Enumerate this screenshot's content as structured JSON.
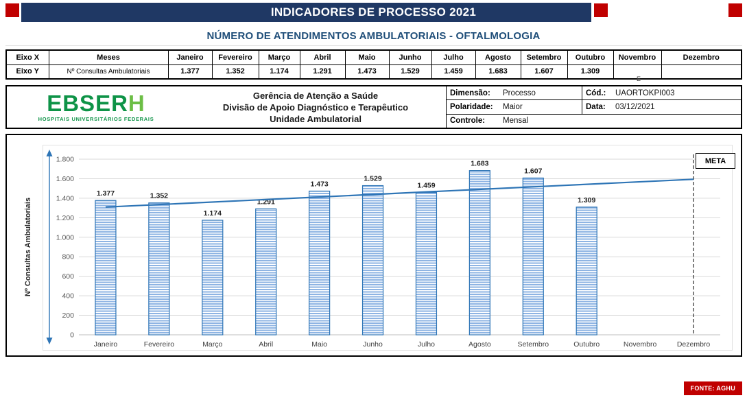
{
  "header": {
    "title": "INDICADORES DE PROCESSO 2021",
    "subtitle": "NÚMERO DE ATENDIMENTOS AMBULATORIAIS - OFTALMOLOGIA"
  },
  "axis_table": {
    "row_x_label": "Eixo X",
    "row_x_name": "Meses",
    "row_y_label": "Eixo Y",
    "row_y_name": "Nº Consultas Ambulatoriais",
    "months": [
      "Janeiro",
      "Fevereiro",
      "Março",
      "Abril",
      "Maio",
      "Junho",
      "Julho",
      "Agosto",
      "Setembro",
      "Outubro",
      "Novembro",
      "Dezembro"
    ],
    "values": [
      "1.377",
      "1.352",
      "1.174",
      "1.291",
      "1.473",
      "1.529",
      "1.459",
      "1.683",
      "1.607",
      "1.309",
      "",
      ""
    ]
  },
  "stray_text": "E",
  "info_panel": {
    "logo_main": "EBSER",
    "logo_h": "H",
    "logo_tagline": "HOSPITAIS UNIVERSITÁRIOS FEDERAIS",
    "org_lines": [
      "Gerência de Atenção a Saúde",
      "Divisão de Apoio Diagnóstico e Terapêutico",
      "Unidade Ambulatorial"
    ],
    "rows": [
      {
        "cells": [
          {
            "label": "Dimensão:",
            "value": "Processo"
          },
          {
            "label": "Cód.:",
            "value": "UAORTOKPI003"
          }
        ]
      },
      {
        "cells": [
          {
            "label": "Polaridade:",
            "value": "Maior"
          },
          {
            "label": "Data:",
            "value": "03/12/2021"
          }
        ]
      },
      {
        "cells": [
          {
            "label": "Controle:",
            "value": "Mensal"
          }
        ]
      }
    ]
  },
  "chart_data": {
    "type": "bar",
    "title": "NÚMERO DE ATENDIMENTOS AMBULATORIAIS - OFTALMOLOGIA",
    "categories": [
      "Janeiro",
      "Fevereiro",
      "Março",
      "Abril",
      "Maio",
      "Junho",
      "Julho",
      "Agosto",
      "Setembro",
      "Outubro",
      "Novembro",
      "Dezembro"
    ],
    "values": [
      1377,
      1352,
      1174,
      1291,
      1473,
      1529,
      1459,
      1683,
      1607,
      1309,
      null,
      null
    ],
    "labels": [
      "1.377",
      "1.352",
      "1.174",
      "1.291",
      "1.473",
      "1.529",
      "1.459",
      "1.683",
      "1.607",
      "1.309",
      "",
      ""
    ],
    "xlabel": "",
    "ylabel": "Nº Consultas Ambulatoriais",
    "ylim": [
      0,
      1800
    ],
    "ytick_step": 200,
    "ytick_labels": [
      "0",
      "200",
      "400",
      "600",
      "800",
      "1.000",
      "1.200",
      "1.400",
      "1.600",
      "1.800"
    ],
    "grid": true,
    "trendline": {
      "start": 1309,
      "end": 1594
    },
    "meta_label": "META"
  },
  "footer": {
    "source": "FONTE: AGHU"
  },
  "colors": {
    "navy": "#1F3864",
    "red": "#C00000",
    "subtitle_blue": "#1F4E79",
    "green_main": "#0E9347",
    "green_h": "#6CBE45",
    "bar_stripe": "#8EB4E3",
    "bar_border": "#2E75B6",
    "trend": "#2E75B6",
    "grid": "#D9D9D9"
  }
}
